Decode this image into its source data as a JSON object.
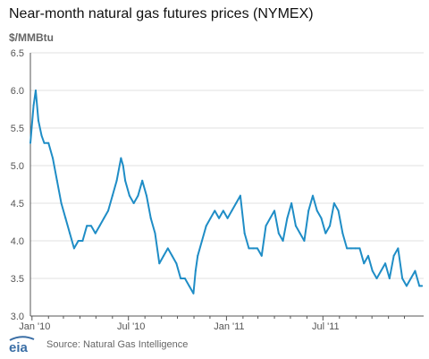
{
  "title": "Near-month natural gas futures prices (NYMEX)",
  "unit": "$/MMBtu",
  "source": "Source: Natural Gas Intelligence",
  "logo_text": "eia",
  "colors": {
    "line": "#1f8dc6",
    "grid": "#e0e0e0",
    "axis": "#555555",
    "tick_text": "#555555",
    "logo": "#3a6ea5"
  },
  "chart_data": {
    "type": "line",
    "title": "Near-month natural gas futures prices (NYMEX)",
    "ylabel": "$/MMBtu",
    "xlabel": "",
    "ylim": [
      3.0,
      6.5
    ],
    "y_ticks": [
      "6.5",
      "6.0",
      "5.5",
      "5.0",
      "4.5",
      "4.0",
      "3.5",
      "3.0"
    ],
    "x_ticks": [
      "Jan '10",
      "Jul '10",
      "Jan '11",
      "Jul '11"
    ],
    "x_range": [
      "2009-12-29",
      "2012-01-06"
    ],
    "grid": true,
    "series": [
      {
        "x": [
          "2009-12-29",
          "2010-01-04",
          "2010-01-08",
          "2010-01-13",
          "2010-01-19",
          "2010-01-24",
          "2010-02-01",
          "2010-02-09",
          "2010-02-17",
          "2010-02-25",
          "2010-03-05",
          "2010-03-13",
          "2010-03-21",
          "2010-03-29",
          "2010-04-06",
          "2010-04-14",
          "2010-04-22",
          "2010-04-30",
          "2010-05-08",
          "2010-05-16",
          "2010-05-24",
          "2010-06-01",
          "2010-06-09",
          "2010-06-17",
          "2010-06-21",
          "2010-06-25",
          "2010-07-03",
          "2010-07-11",
          "2010-07-19",
          "2010-07-27",
          "2010-08-04",
          "2010-08-12",
          "2010-08-20",
          "2010-08-28",
          "2010-09-05",
          "2010-09-13",
          "2010-09-21",
          "2010-09-29",
          "2010-10-07",
          "2010-10-15",
          "2010-10-23",
          "2010-10-31",
          "2010-11-04",
          "2010-11-08",
          "2010-11-16",
          "2010-11-24",
          "2010-12-02",
          "2010-12-10",
          "2010-12-18",
          "2010-12-26",
          "2011-01-03",
          "2011-01-11",
          "2011-01-19",
          "2011-01-27",
          "2011-02-04",
          "2011-02-12",
          "2011-02-20",
          "2011-02-28",
          "2011-03-08",
          "2011-03-16",
          "2011-03-24",
          "2011-04-01",
          "2011-04-09",
          "2011-04-17",
          "2011-04-25",
          "2011-05-03",
          "2011-05-11",
          "2011-05-19",
          "2011-05-27",
          "2011-06-04",
          "2011-06-12",
          "2011-06-20",
          "2011-06-28",
          "2011-07-06",
          "2011-07-14",
          "2011-07-22",
          "2011-07-30",
          "2011-08-07",
          "2011-08-15",
          "2011-08-23",
          "2011-08-31",
          "2011-09-08",
          "2011-09-16",
          "2011-09-24",
          "2011-10-02",
          "2011-10-10",
          "2011-10-18",
          "2011-10-26",
          "2011-11-03",
          "2011-11-11",
          "2011-11-19",
          "2011-11-27",
          "2011-12-05",
          "2011-12-13",
          "2011-12-21",
          "2011-12-29",
          "2012-01-03"
        ],
        "values": [
          5.3,
          5.8,
          6.0,
          5.6,
          5.4,
          5.3,
          5.3,
          5.1,
          4.8,
          4.5,
          4.3,
          4.1,
          3.9,
          4.0,
          4.0,
          4.2,
          4.2,
          4.1,
          4.2,
          4.3,
          4.4,
          4.6,
          4.8,
          5.1,
          5.0,
          4.8,
          4.6,
          4.5,
          4.6,
          4.8,
          4.6,
          4.3,
          4.1,
          3.7,
          3.8,
          3.9,
          3.8,
          3.7,
          3.5,
          3.5,
          3.4,
          3.3,
          3.6,
          3.8,
          4.0,
          4.2,
          4.3,
          4.4,
          4.3,
          4.4,
          4.3,
          4.4,
          4.5,
          4.6,
          4.1,
          3.9,
          3.9,
          3.9,
          3.8,
          4.2,
          4.3,
          4.4,
          4.1,
          4.0,
          4.3,
          4.5,
          4.2,
          4.1,
          4.0,
          4.4,
          4.6,
          4.4,
          4.3,
          4.1,
          4.2,
          4.5,
          4.4,
          4.1,
          3.9,
          3.9,
          3.9,
          3.9,
          3.7,
          3.8,
          3.6,
          3.5,
          3.6,
          3.7,
          3.5,
          3.8,
          3.9,
          3.5,
          3.4,
          3.5,
          3.6,
          3.4,
          3.4
        ]
      }
    ]
  }
}
